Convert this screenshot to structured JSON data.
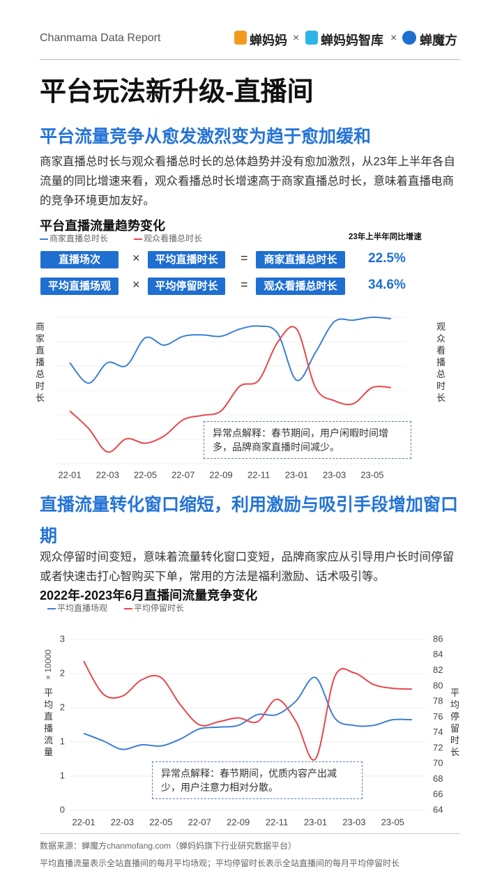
{
  "header": {
    "brand": "Chanmama Data Report",
    "logos": [
      "蝉妈妈",
      "×",
      "蝉妈妈智库",
      "×",
      "蝉魔方"
    ]
  },
  "title": "平台玩法新升级-直播间",
  "section1": {
    "heading": "平台流量竞争从愈发激烈变为趋于愈加缓和",
    "text": "商家直播总时长与观众看播总时长的总体趋势并没有愈加激烈，从23年上半年各自流量的同比增速来看，观众看播总时长增速高于商家直播总时长，意味着直播电商的竞争环境更加友好。",
    "growth_title": "23年上半年同比增速",
    "formulas": [
      [
        "直播场次",
        "×",
        "平均直播时长",
        "=",
        "商家直播总时长",
        "22.5%"
      ],
      [
        "平均直播场观",
        "×",
        "平均停留时长",
        "=",
        "观众看播总时长",
        "34.6%"
      ]
    ]
  },
  "section2": {
    "heading": "直播流量转化窗口缩短，利用激励与吸引手段增加窗口期",
    "text": "观众停留时间变短，意味着流量转化窗口变短，品牌商家应从引导用户长时间停留或者快速击打心智购买下单，常用的方法是福利激励、话术吸引等。"
  },
  "chart_data": [
    {
      "type": "line",
      "title": "平台直播流量趋势变化",
      "categories": [
        "22-01",
        null,
        "22-03",
        null,
        "22-05",
        null,
        "22-07",
        null,
        "22-09",
        null,
        "22-11",
        null,
        "23-01",
        null,
        "23-03",
        null,
        "23-05",
        null
      ],
      "series": [
        {
          "name": "商家直播总时长",
          "color": "#3a7fd5",
          "values": [
            69,
            55,
            69,
            67,
            86,
            81,
            87,
            88,
            87,
            92,
            94,
            89,
            57,
            76,
            97,
            98,
            100,
            99
          ]
        },
        {
          "name": "观众看播总时长",
          "color": "#e8474c",
          "axis": "y2",
          "values": [
            36,
            24,
            8,
            17,
            14,
            19,
            30,
            33,
            36,
            53,
            57,
            83,
            92,
            52,
            43,
            41,
            52,
            52
          ]
        }
      ],
      "ylim": [
        0,
        100
      ],
      "y2lim": [
        0,
        100
      ],
      "y_label": "商家直播总时长",
      "y2_label": "观众看播总时长",
      "annotation": "异常点解释：春节期间，用户闲暇时间增多，品牌商家直播时间减少。"
    },
    {
      "type": "line",
      "title": "2022年-2023年6月直播间流量竞争变化",
      "categories": [
        "22-01",
        null,
        "22-03",
        null,
        "22-05",
        null,
        "22-07",
        null,
        "22-09",
        null,
        "22-11",
        null,
        "23-01",
        null,
        "23-03",
        null,
        "23-05",
        null
      ],
      "series": [
        {
          "name": "平均直播场观",
          "color": "#3a7fd5",
          "values": [
            1.35,
            1.22,
            1.07,
            1.15,
            1.13,
            1.25,
            1.43,
            1.46,
            1.49,
            1.68,
            1.68,
            1.92,
            2.33,
            1.62,
            1.49,
            1.49,
            1.59,
            1.59
          ]
        },
        {
          "name": "平均停留时长",
          "color": "#e8474c",
          "axis": "y2",
          "values": [
            83.2,
            79.0,
            78.7,
            80.8,
            81.1,
            77.6,
            75.0,
            75.4,
            75.9,
            75.4,
            78.3,
            75.4,
            70.6,
            81.2,
            81.7,
            80.2,
            79.7,
            79.6
          ]
        }
      ],
      "ylim": [
        0,
        3
      ],
      "yticks": [
        0,
        {
          "value": 0.6,
          "label": "1"
        },
        {
          "value": 1.2,
          "label": "1"
        },
        {
          "value": 1.8,
          "label": "2"
        },
        {
          "value": 2.4,
          "label": "2"
        },
        3
      ],
      "y2lim": [
        64,
        86
      ],
      "y2ticks": [
        64,
        66,
        68,
        70,
        72,
        74,
        76,
        78,
        80,
        82,
        84,
        86
      ],
      "y_unit": "× 10000",
      "y_label": "平均直播流量",
      "y2_label": "平均停留时长",
      "grid": true,
      "annotation": "异常点解释：春节期间，优质内容产出减少，用户注意力相对分散。"
    }
  ],
  "footer": [
    "数据来源：蝉魔方chanmofang.com（蝉妈妈旗下行业研究数据平台）",
    "平均直播流量表示全站直播间的每月平均场观；平均停留时长表示全站直播间的每月平均停留时长"
  ]
}
